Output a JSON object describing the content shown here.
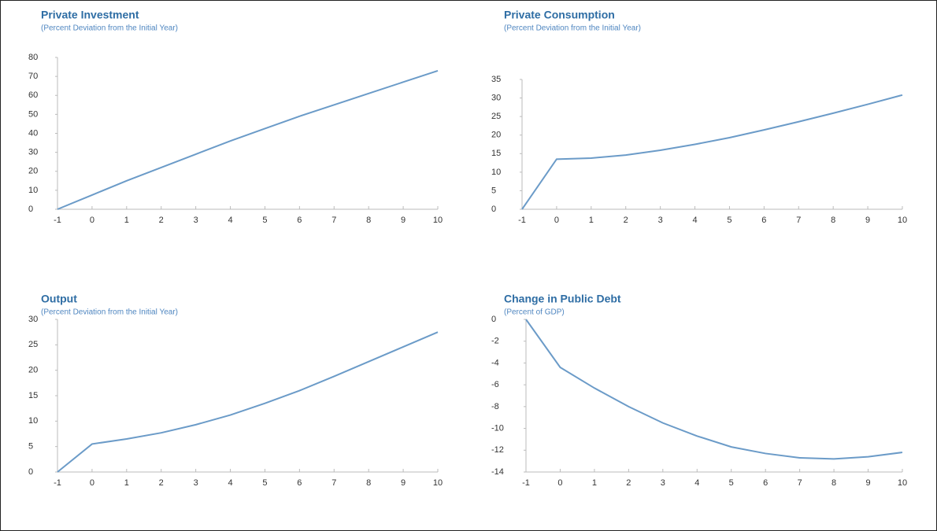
{
  "chart_data": [
    {
      "type": "line",
      "title": "Private Investment",
      "subtitle": "(Percent Deviation from the Initial Year)",
      "x": [
        -1,
        0,
        1,
        2,
        3,
        4,
        5,
        6,
        7,
        8,
        9,
        10
      ],
      "xlim": [
        -1,
        10
      ],
      "xticks": [
        -1,
        0,
        1,
        2,
        3,
        4,
        5,
        6,
        7,
        8,
        9,
        10
      ],
      "values": [
        0,
        7.5,
        15,
        22,
        29,
        36,
        42.5,
        49,
        55,
        61,
        67,
        73
      ],
      "color": "#6b9bc8",
      "ylim": [
        0,
        80
      ],
      "yticks": [
        0,
        10,
        20,
        30,
        40,
        50,
        60,
        70,
        80
      ]
    },
    {
      "type": "line",
      "title": "Private Consumption",
      "subtitle": "(Percent Deviation from the Initial Year)",
      "x": [
        -1,
        0,
        1,
        2,
        3,
        4,
        5,
        6,
        7,
        8,
        9,
        10
      ],
      "xlim": [
        -1,
        10
      ],
      "xticks": [
        -1,
        0,
        1,
        2,
        3,
        4,
        5,
        6,
        7,
        8,
        9,
        10
      ],
      "values": [
        0,
        13.5,
        13.8,
        14.6,
        15.9,
        17.5,
        19.3,
        21.4,
        23.6,
        25.9,
        28.3,
        30.8
      ],
      "color": "#6b9bc8",
      "ylim": [
        0,
        35
      ],
      "yticks": [
        0,
        5,
        10,
        15,
        20,
        25,
        30,
        35
      ]
    },
    {
      "type": "line",
      "title": "Output",
      "subtitle": "(Percent Deviation from the Initial Year)",
      "x": [
        -1,
        0,
        1,
        2,
        3,
        4,
        5,
        6,
        7,
        8,
        9,
        10
      ],
      "xlim": [
        -1,
        10
      ],
      "xticks": [
        -1,
        0,
        1,
        2,
        3,
        4,
        5,
        6,
        7,
        8,
        9,
        10
      ],
      "values": [
        0,
        5.5,
        6.5,
        7.7,
        9.3,
        11.2,
        13.5,
        16,
        18.8,
        21.7,
        24.6,
        27.5
      ],
      "color": "#6b9bc8",
      "ylim": [
        0,
        30
      ],
      "yticks": [
        0,
        5,
        10,
        15,
        20,
        25,
        30
      ]
    },
    {
      "type": "line",
      "title": "Change in Public Debt",
      "subtitle": "(Percent of GDP)",
      "x": [
        -1,
        0,
        1,
        2,
        3,
        4,
        5,
        6,
        7,
        8,
        9,
        10
      ],
      "xlim": [
        -1,
        10
      ],
      "xticks": [
        -1,
        0,
        1,
        2,
        3,
        4,
        5,
        6,
        7,
        8,
        9,
        10
      ],
      "values": [
        0,
        -4.4,
        -6.3,
        -8.0,
        -9.5,
        -10.7,
        -11.7,
        -12.3,
        -12.7,
        -12.8,
        -12.6,
        -12.2
      ],
      "color": "#6b9bc8",
      "ylim": [
        -14,
        0
      ],
      "yticks": [
        -14,
        -12,
        -10,
        -8,
        -6,
        -4,
        -2,
        0
      ]
    }
  ]
}
